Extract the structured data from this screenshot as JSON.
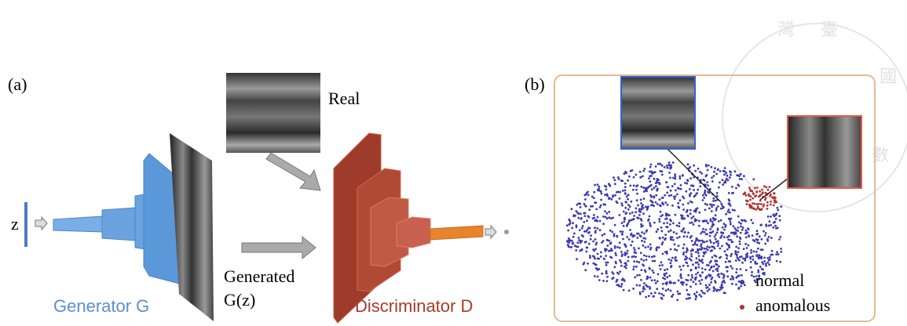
{
  "panel_a": {
    "label": "(a)",
    "real": "Real",
    "z": "z",
    "generated": "Generated",
    "gz": "G(z)",
    "generator": "Generator G",
    "discriminator": "Discriminator D"
  },
  "panel_b": {
    "label": "(b)",
    "legend": [
      "normal",
      "anomalous"
    ]
  },
  "watermark": [
    "灣",
    "臺",
    "國",
    "數"
  ]
}
